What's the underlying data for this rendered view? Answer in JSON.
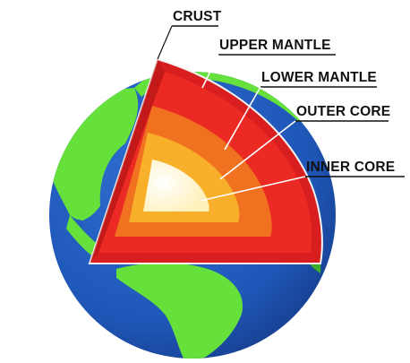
{
  "labels": {
    "crust": "CRUST",
    "upper_mantle": "UPPER MANTLE",
    "lower_mantle": "LOWER MANTLE",
    "outer_core": "OUTER CORE",
    "inner_core": "INNER CORE"
  },
  "colors": {
    "ocean": "#1f57b8",
    "ocean_dark": "#173f8f",
    "land": "#66e03a",
    "land_dark": "#3fae2a",
    "crust": "#d81e1e",
    "upper_mantle": "#ea2a23",
    "lower_mantle": "#f0711f",
    "outer_core": "#f8b02a",
    "inner_core": "#fff5c9"
  }
}
